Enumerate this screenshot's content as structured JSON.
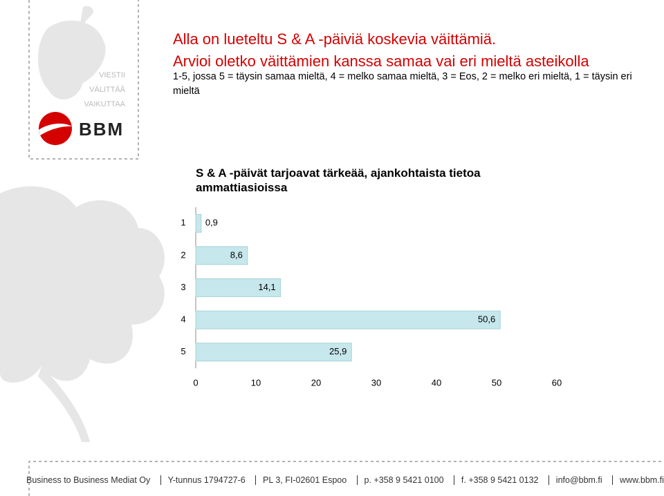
{
  "slide": {
    "heading": "Alla on lueteltu S & A -päiviä koskevia väittämiä.",
    "subheading": "Arvioi oletko väittämien kanssa samaa vai eri mieltä asteikolla",
    "instructions": "1-5, jossa 5 = täysin samaa mieltä, 4 = melko samaa mieltä, 3 = Eos, 2 = melko eri mieltä, 1 = täysin eri mieltä",
    "logo": {
      "taglines": [
        "VIESTII",
        "VÄLITTÄÄ",
        "VAIKUTTAA"
      ],
      "brand": "BBM"
    },
    "footer": [
      "Business to Business Mediat Oy",
      "Y-tunnus 1794727-6",
      "PL 3, FI-02601 Espoo",
      "p. +358 9 5421 0100",
      "f. +358 9 5421 0132",
      "info@bbm.fi",
      "www.bbm.fi"
    ]
  },
  "chart_data": {
    "type": "bar",
    "orientation": "horizontal",
    "title": "S & A -päivät tarjoavat tärkeää, ajankohtaista tietoa ammattiasioissa",
    "categories": [
      "1",
      "2",
      "3",
      "4",
      "5"
    ],
    "values": [
      0.9,
      8.6,
      14.1,
      50.6,
      25.9
    ],
    "value_labels": [
      "0,9",
      "8,6",
      "14,1",
      "50,6",
      "25,9"
    ],
    "color": "#c6e7eb",
    "xlim": [
      0,
      60
    ],
    "xticks": [
      0,
      10,
      20,
      30,
      40,
      50,
      60
    ]
  }
}
